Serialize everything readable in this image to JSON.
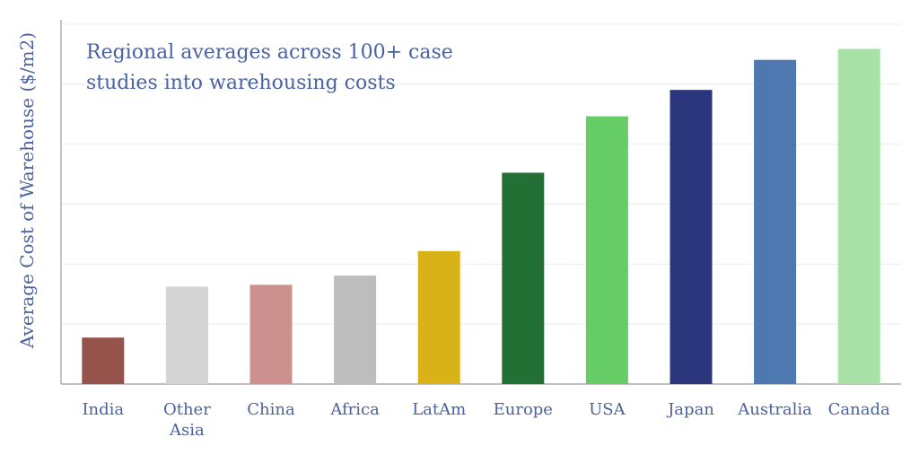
{
  "chart_data": {
    "type": "bar",
    "title": "",
    "annotation": "Regional averages across 100+ case studies into warehousing costs",
    "xlabel": "",
    "ylabel": "Average Cost of Warehouse ($/m2)",
    "categories": [
      "India",
      "Other Asia",
      "China",
      "Africa",
      "LatAm",
      "Europe",
      "USA",
      "Japan",
      "Australia",
      "Canada"
    ],
    "values": [
      0.51,
      1.07,
      1.09,
      1.19,
      1.46,
      2.32,
      2.94,
      3.23,
      3.56,
      3.68
    ],
    "colors": [
      "#96534b",
      "#d4d4d4",
      "#cc908f",
      "#bdbdbd",
      "#d9b217",
      "#237034",
      "#66cc66",
      "#2b357c",
      "#4d78b0",
      "#a8e2a6"
    ],
    "ylim": [
      0,
      4
    ],
    "grid": true,
    "y_tick_labels_shown": false,
    "legend": "none"
  }
}
